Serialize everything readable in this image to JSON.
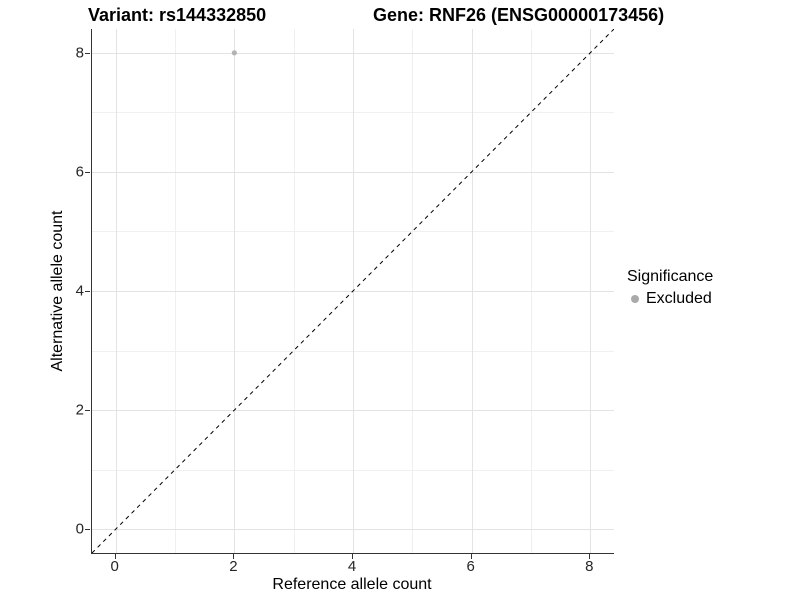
{
  "titles": {
    "variant": "Variant: rs144332850",
    "gene": "Gene: RNF26 (ENSG00000173456)"
  },
  "legend": {
    "title": "Significance",
    "items": [
      {
        "label": "Excluded",
        "color": "#aaaaaa"
      }
    ]
  },
  "chart_data": {
    "type": "scatter",
    "title": "Variant: rs144332850   Gene: RNF26 (ENSG00000173456)",
    "xlabel": "Reference allele count",
    "ylabel": "Alternative allele count",
    "xlim": [
      -0.4,
      8.4
    ],
    "ylim": [
      -0.4,
      8.4
    ],
    "x_ticks": [
      0,
      2,
      4,
      6,
      8
    ],
    "y_ticks": [
      0,
      2,
      4,
      6,
      8
    ],
    "x_minor_ticks": [
      1,
      3,
      5,
      7
    ],
    "y_minor_ticks": [
      1,
      3,
      5,
      7
    ],
    "grid": "major+minor",
    "legend_position": "right",
    "series": [
      {
        "name": "Excluded",
        "color": "#b3b3b3",
        "points": [
          {
            "x": 2,
            "y": 8
          }
        ]
      }
    ],
    "reference_line": {
      "kind": "identity y=x",
      "style": "dashed",
      "color": "#000000",
      "from": [
        -0.4,
        -0.4
      ],
      "to": [
        8.4,
        8.4
      ]
    }
  },
  "colors": {
    "background": "#ffffff",
    "axis_line": "#333333",
    "grid_major": "#e3e3e3",
    "grid_minor": "#f0f0f0",
    "tick_text": "#262626"
  }
}
